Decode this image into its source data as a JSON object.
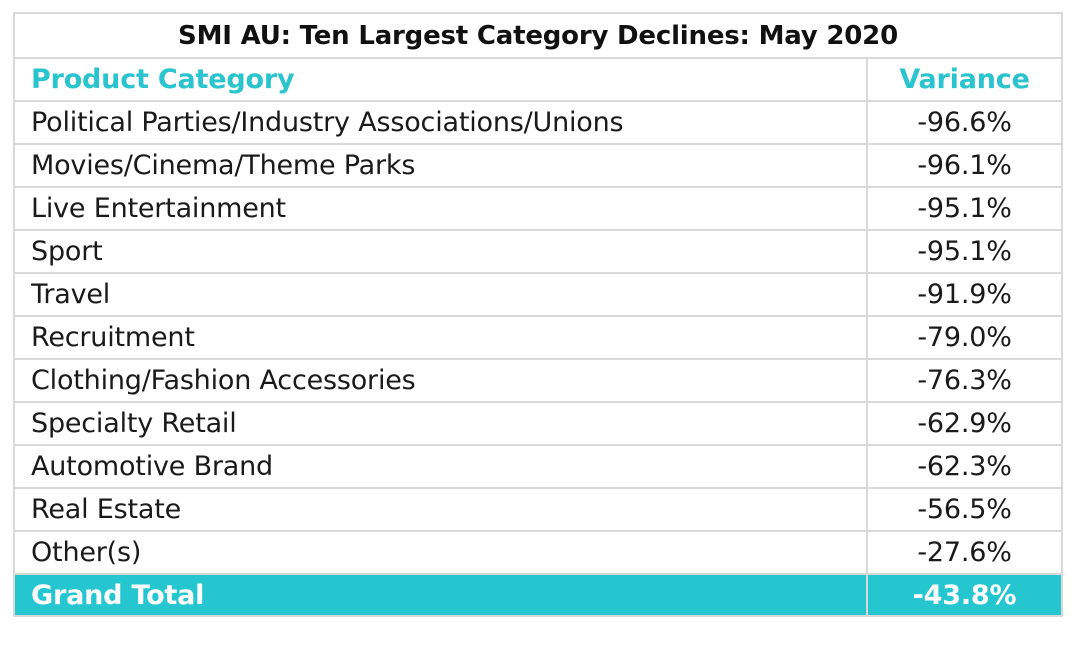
{
  "chart_data": {
    "type": "table",
    "title": "SMI AU: Ten Largest Category Declines: May 2020",
    "columns": [
      "Product Category",
      "Variance"
    ],
    "rows": [
      {
        "category": "Political Parties/Industry Associations/Unions",
        "variance": "-96.6%"
      },
      {
        "category": "Movies/Cinema/Theme Parks",
        "variance": "-96.1%"
      },
      {
        "category": "Live Entertainment",
        "variance": "-95.1%"
      },
      {
        "category": "Sport",
        "variance": "-95.1%"
      },
      {
        "category": "Travel",
        "variance": "-91.9%"
      },
      {
        "category": "Recruitment",
        "variance": "-79.0%"
      },
      {
        "category": "Clothing/Fashion Accessories",
        "variance": "-76.3%"
      },
      {
        "category": "Specialty Retail",
        "variance": "-62.9%"
      },
      {
        "category": "Automotive Brand",
        "variance": "-62.3%"
      },
      {
        "category": "Real Estate",
        "variance": "-56.5%"
      },
      {
        "category": "Other(s)",
        "variance": "-27.6%"
      }
    ],
    "total": {
      "category": "Grand Total",
      "variance": "-43.8%"
    },
    "colors": {
      "accent": "#26c6d0",
      "header_text": "#2ac4cf",
      "grid": "#d9d9d9"
    }
  }
}
